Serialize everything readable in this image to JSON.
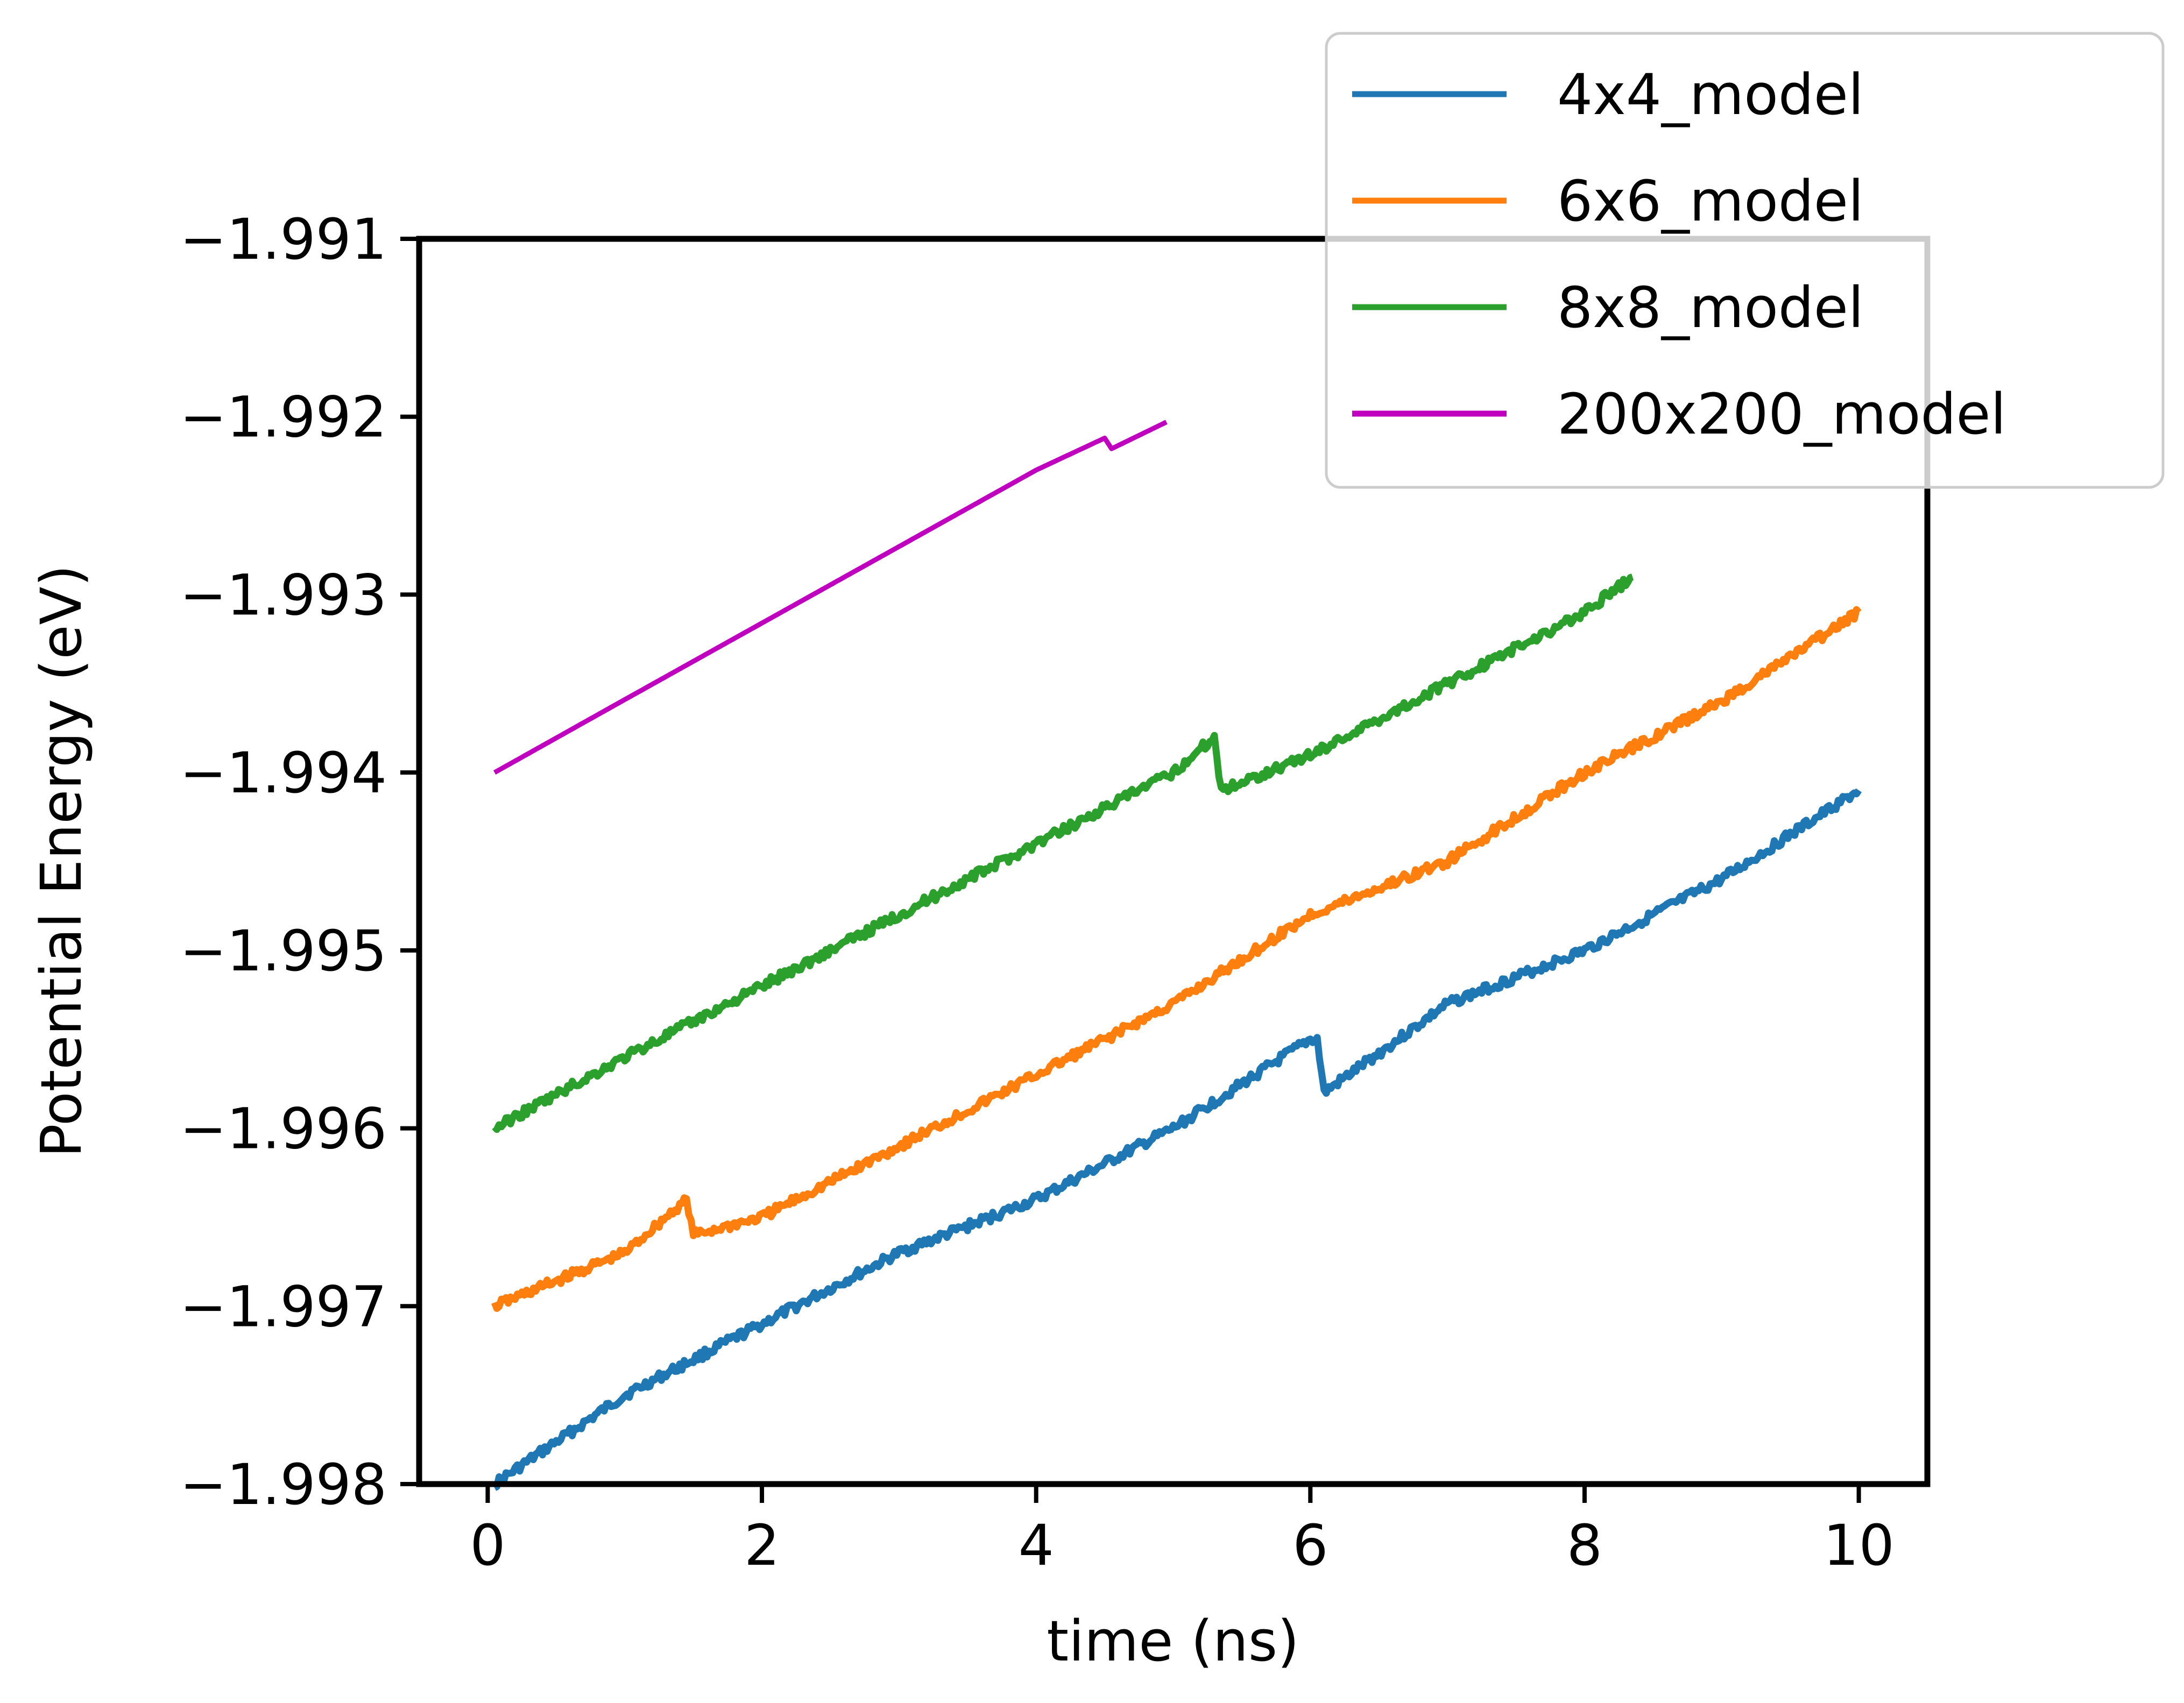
{
  "chart_data": {
    "type": "line",
    "title": "",
    "xlabel": "time (ns)",
    "ylabel": "Potential Energy (eV)",
    "xlim": [
      -0.5,
      10.5
    ],
    "ylim": [
      -1.998,
      -1.991
    ],
    "xticks": [
      0,
      2,
      4,
      6,
      8,
      10
    ],
    "xtick_labels": [
      "0",
      "2",
      "4",
      "6",
      "8",
      "10"
    ],
    "yticks": [
      -1.998,
      -1.997,
      -1.996,
      -1.995,
      -1.994,
      -1.993,
      -1.992,
      -1.991
    ],
    "ytick_labels": [
      "−1.998",
      "−1.997",
      "−1.996",
      "−1.995",
      "−1.994",
      "−1.993",
      "−1.992",
      "−1.991"
    ],
    "grid": false,
    "legend_position": "top-right",
    "series": [
      {
        "name": "4x4_model",
        "color": "#1f77b4",
        "x": [
          0.05,
          1.0,
          2.0,
          3.0,
          4.0,
          5.0,
          6.0,
          6.05,
          6.1,
          7.0,
          8.0,
          9.0,
          10.0
        ],
        "y": [
          -1.998,
          -1.9975,
          -1.9971,
          -1.9967,
          -1.9964,
          -1.996,
          -1.9955,
          -1.9955,
          -1.9958,
          -1.9953,
          -1.995,
          -1.9946,
          -1.9941
        ]
      },
      {
        "name": "6x6_model",
        "color": "#ff7f0e",
        "x": [
          0.05,
          1.0,
          1.45,
          1.5,
          2.0,
          3.0,
          4.0,
          5.0,
          6.0,
          7.0,
          8.0,
          9.0,
          10.0
        ],
        "y": [
          -1.997,
          -1.9967,
          -1.9964,
          -1.9966,
          -1.9965,
          -1.9961,
          -1.9957,
          -1.9953,
          -1.9948,
          -1.9945,
          -1.994,
          -1.9936,
          -1.9931
        ]
      },
      {
        "name": "8x8_model",
        "color": "#2ca02c",
        "x": [
          0.05,
          1.0,
          2.0,
          3.0,
          4.0,
          5.0,
          5.3,
          5.35,
          6.0,
          7.0,
          8.0,
          8.35
        ],
        "y": [
          -1.996,
          -1.9956,
          -1.9952,
          -1.9948,
          -1.9944,
          -1.994,
          -1.9938,
          -1.9941,
          -1.9939,
          -1.9935,
          -1.9931,
          -1.9929
        ]
      },
      {
        "name": "200x200_model",
        "color": "#bf00bf",
        "x": [
          0.05,
          1.0,
          2.0,
          3.0,
          4.0,
          4.5,
          4.55,
          4.95
        ],
        "y": [
          -1.994,
          -1.99359,
          -1.99316,
          -1.99273,
          -1.9923,
          -1.99212,
          -1.99218,
          -1.99203
        ]
      }
    ]
  }
}
